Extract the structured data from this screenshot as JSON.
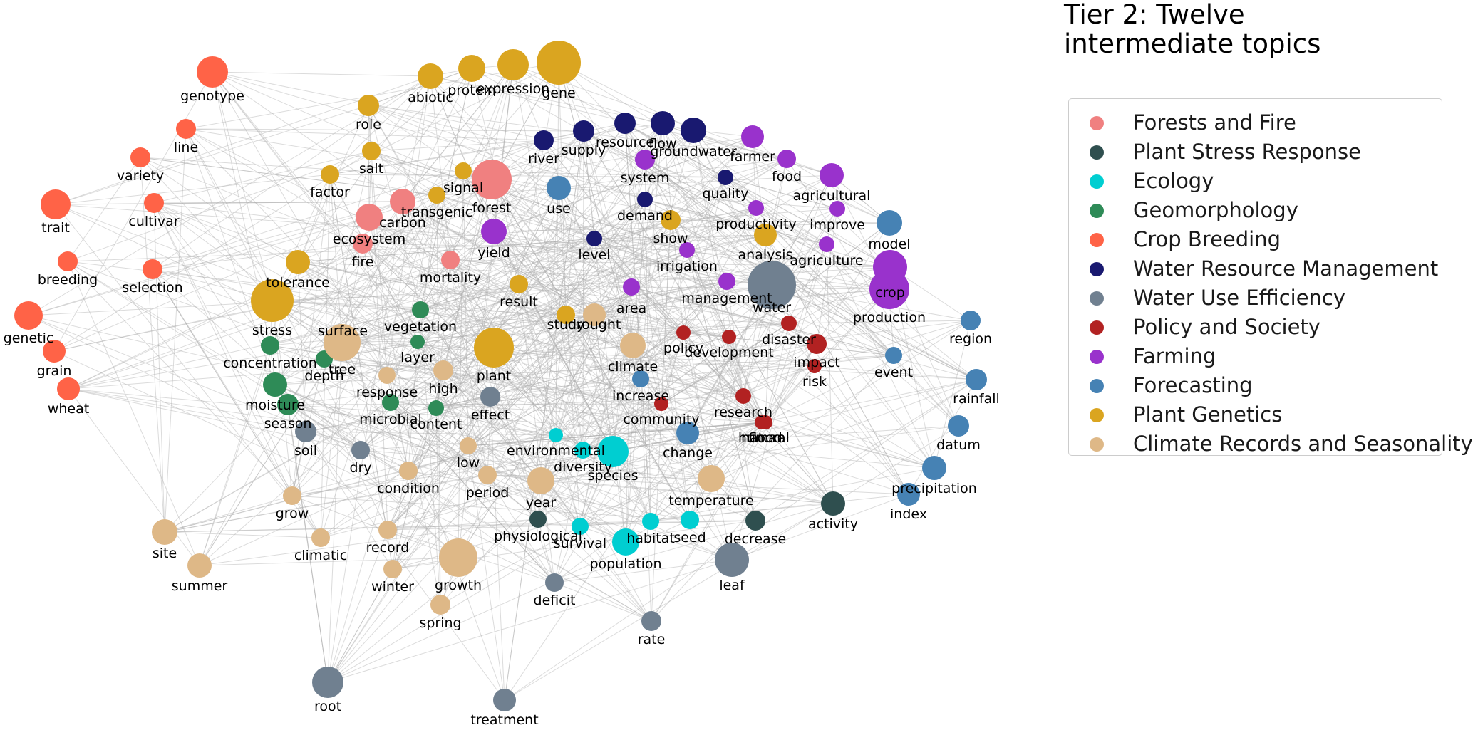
{
  "title": "Tier 2: Twelve\nintermediate topics",
  "topics": [
    {
      "name": "Forests and Fire",
      "color": "#F08080"
    },
    {
      "name": "Plant Stress Response",
      "color": "#2F4F4F"
    },
    {
      "name": "Ecology",
      "color": "#00CED1"
    },
    {
      "name": "Geomorphology",
      "color": "#2E8B57"
    },
    {
      "name": "Crop Breeding",
      "color": "#FF6347"
    },
    {
      "name": "Water Resource Management",
      "color": "#191970"
    },
    {
      "name": "Water Use Efficiency",
      "color": "#708090"
    },
    {
      "name": "Policy and Society",
      "color": "#B22222"
    },
    {
      "name": "Farming",
      "color": "#9932CC"
    },
    {
      "name": "Forecasting",
      "color": "#4682B4"
    },
    {
      "name": "Plant Genetics",
      "color": "#DAA520"
    },
    {
      "name": "Climate Records and Seasonality",
      "color": "#DEB887"
    }
  ],
  "nodes": [
    {
      "label": "genotype",
      "topic": 4
    },
    {
      "label": "line",
      "topic": 4
    },
    {
      "label": "variety",
      "topic": 4
    },
    {
      "label": "trait",
      "topic": 4
    },
    {
      "label": "cultivar",
      "topic": 4
    },
    {
      "label": "breeding",
      "topic": 4
    },
    {
      "label": "selection",
      "topic": 4
    },
    {
      "label": "genetic",
      "topic": 4
    },
    {
      "label": "grain",
      "topic": 4
    },
    {
      "label": "wheat",
      "topic": 4
    },
    {
      "label": "abiotic",
      "topic": 10
    },
    {
      "label": "protein",
      "topic": 10
    },
    {
      "label": "expression",
      "topic": 10
    },
    {
      "label": "gene",
      "topic": 10
    },
    {
      "label": "role",
      "topic": 10
    },
    {
      "label": "salt",
      "topic": 10
    },
    {
      "label": "factor",
      "topic": 10
    },
    {
      "label": "signal",
      "topic": 10
    },
    {
      "label": "transgenic",
      "topic": 10
    },
    {
      "label": "tolerance",
      "topic": 10
    },
    {
      "label": "stress",
      "topic": 10
    },
    {
      "label": "plant",
      "topic": 10
    },
    {
      "label": "result",
      "topic": 10
    },
    {
      "label": "study",
      "topic": 10
    },
    {
      "label": "show",
      "topic": 10
    },
    {
      "label": "analysis",
      "topic": 10
    },
    {
      "label": "forest",
      "topic": 0
    },
    {
      "label": "ecosystem",
      "topic": 0
    },
    {
      "label": "fire",
      "topic": 0
    },
    {
      "label": "carbon",
      "topic": 0
    },
    {
      "label": "mortality",
      "topic": 0
    },
    {
      "label": "river",
      "topic": 5
    },
    {
      "label": "supply",
      "topic": 5
    },
    {
      "label": "resource",
      "topic": 5
    },
    {
      "label": "flow",
      "topic": 5
    },
    {
      "label": "groundwater",
      "topic": 5
    },
    {
      "label": "quality",
      "topic": 5
    },
    {
      "label": "demand",
      "topic": 5
    },
    {
      "label": "level",
      "topic": 5
    },
    {
      "label": "farmer",
      "topic": 8
    },
    {
      "label": "food",
      "topic": 8
    },
    {
      "label": "agricultural",
      "topic": 8
    },
    {
      "label": "system",
      "topic": 8
    },
    {
      "label": "productivity",
      "topic": 8
    },
    {
      "label": "improve",
      "topic": 8
    },
    {
      "label": "agriculture",
      "topic": 8
    },
    {
      "label": "yield",
      "topic": 8
    },
    {
      "label": "irrigation",
      "topic": 8
    },
    {
      "label": "management",
      "topic": 8
    },
    {
      "label": "production",
      "topic": 8
    },
    {
      "label": "crop",
      "topic": 8
    },
    {
      "label": "area",
      "topic": 8
    },
    {
      "label": "use",
      "topic": 9
    },
    {
      "label": "model",
      "topic": 9
    },
    {
      "label": "region",
      "topic": 9
    },
    {
      "label": "event",
      "topic": 9
    },
    {
      "label": "rainfall",
      "topic": 9
    },
    {
      "label": "datum",
      "topic": 9
    },
    {
      "label": "precipitation",
      "topic": 9
    },
    {
      "label": "index",
      "topic": 9
    },
    {
      "label": "change",
      "topic": 9
    },
    {
      "label": "increase",
      "topic": 9
    },
    {
      "label": "water",
      "topic": 6
    },
    {
      "label": "effect",
      "topic": 6
    },
    {
      "label": "soil",
      "topic": 6
    },
    {
      "label": "dry",
      "topic": 6
    },
    {
      "label": "leaf",
      "topic": 6
    },
    {
      "label": "deficit",
      "topic": 6
    },
    {
      "label": "rate",
      "topic": 6
    },
    {
      "label": "root",
      "topic": 6
    },
    {
      "label": "treatment",
      "topic": 6
    },
    {
      "label": "policy",
      "topic": 7
    },
    {
      "label": "development",
      "topic": 7
    },
    {
      "label": "disaster",
      "topic": 7
    },
    {
      "label": "impact",
      "topic": 7
    },
    {
      "label": "risk",
      "topic": 7
    },
    {
      "label": "research",
      "topic": 7
    },
    {
      "label": "human",
      "topic": 7
    },
    {
      "label": "natural",
      "topic": 7
    },
    {
      "label": "community",
      "topic": 7
    },
    {
      "label": "flood",
      "topic": 7
    },
    {
      "label": "surface",
      "topic": 3
    },
    {
      "label": "vegetation",
      "topic": 3
    },
    {
      "label": "concentration",
      "topic": 3
    },
    {
      "label": "depth",
      "topic": 3
    },
    {
      "label": "moisture",
      "topic": 3
    },
    {
      "label": "season",
      "topic": 3
    },
    {
      "label": "microbial",
      "topic": 3
    },
    {
      "label": "content",
      "topic": 3
    },
    {
      "label": "layer",
      "topic": 3
    },
    {
      "label": "environmental",
      "topic": 2
    },
    {
      "label": "diversity",
      "topic": 2
    },
    {
      "label": "species",
      "topic": 2
    },
    {
      "label": "habitat",
      "topic": 2
    },
    {
      "label": "seed",
      "topic": 2
    },
    {
      "label": "survival",
      "topic": 2
    },
    {
      "label": "population",
      "topic": 2
    },
    {
      "label": "physiological",
      "topic": 1
    },
    {
      "label": "decrease",
      "topic": 1
    },
    {
      "label": "activity",
      "topic": 1
    },
    {
      "label": "tree",
      "topic": 11
    },
    {
      "label": "drought",
      "topic": 11
    },
    {
      "label": "climate",
      "topic": 11
    },
    {
      "label": "high",
      "topic": 11
    },
    {
      "label": "response",
      "topic": 11
    },
    {
      "label": "low",
      "topic": 11
    },
    {
      "label": "condition",
      "topic": 11
    },
    {
      "label": "period",
      "topic": 11
    },
    {
      "label": "year",
      "topic": 11
    },
    {
      "label": "temperature",
      "topic": 11
    },
    {
      "label": "grow",
      "topic": 11
    },
    {
      "label": "site",
      "topic": 11
    },
    {
      "label": "climatic",
      "topic": 11
    },
    {
      "label": "record",
      "topic": 11
    },
    {
      "label": "summer",
      "topic": 11
    },
    {
      "label": "winter",
      "topic": 11
    },
    {
      "label": "growth",
      "topic": 11
    },
    {
      "label": "spring",
      "topic": 11
    }
  ]
}
